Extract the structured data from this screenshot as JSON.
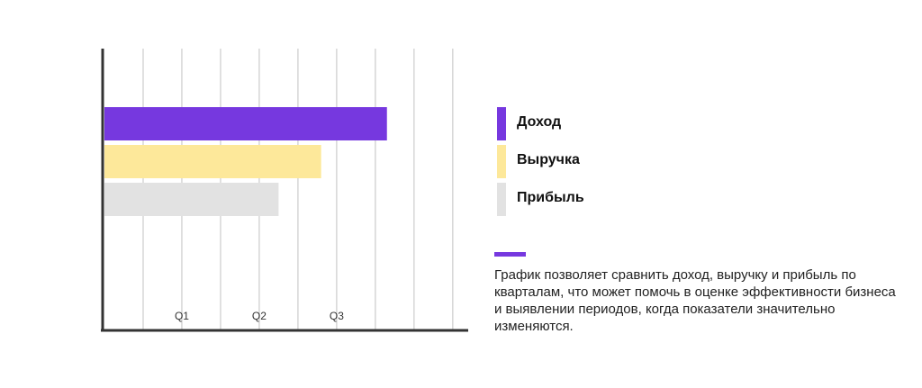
{
  "chart_data": {
    "type": "bar",
    "orientation": "horizontal",
    "series": [
      {
        "name": "Доход",
        "value": 3.65,
        "color": "#7638df"
      },
      {
        "name": "Выручка",
        "value": 2.8,
        "color": "#fde89a"
      },
      {
        "name": "Прибыль",
        "value": 2.25,
        "color": "#e2e2e2"
      }
    ],
    "x_ticks": [
      "Q1",
      "Q2",
      "Q3"
    ],
    "xlim": [
      0,
      4.7
    ],
    "grid": true,
    "legend_position": "right"
  },
  "legend": [
    {
      "label": "Доход",
      "color": "#7638df"
    },
    {
      "label": "Выручка",
      "color": "#fde89a"
    },
    {
      "label": "Прибыль",
      "color": "#e2e2e2"
    }
  ],
  "accent_color": "#7638df",
  "description": "График позволяет сравнить доход, выручку и прибыль по кварталам, что может помочь в оценке эффективности бизнеса и выявлении периодов, когда показатели значительно изменяются."
}
